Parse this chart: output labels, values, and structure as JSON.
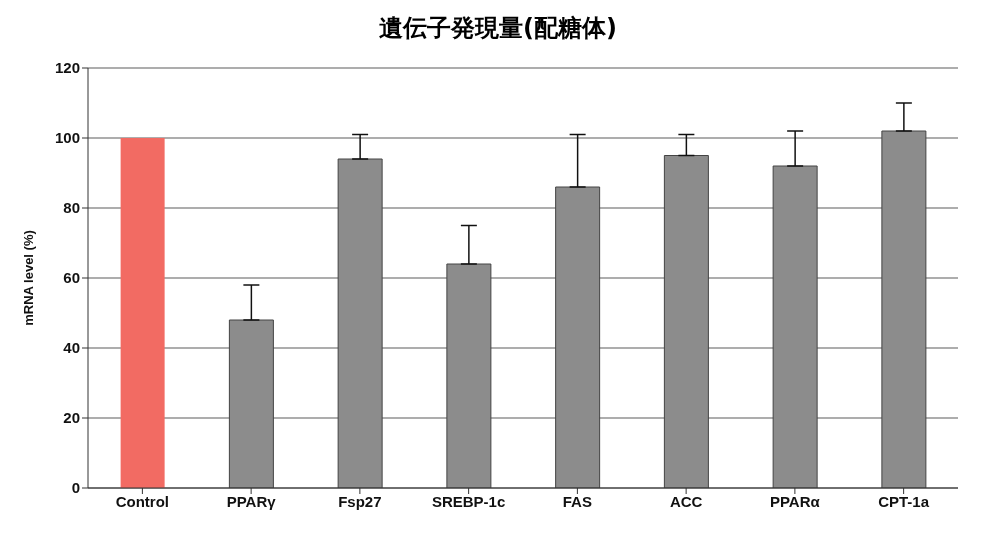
{
  "chart_data": {
    "type": "bar",
    "title": "遺伝子発現量(配糖体)",
    "ylabel": "mRNA level (%)",
    "categories": [
      "Control",
      "PPARγ",
      "Fsp27",
      "SREBP-1c",
      "FAS",
      "ACC",
      "PPARα",
      "CPT-1a"
    ],
    "values": [
      100,
      48,
      94,
      64,
      86,
      95,
      92,
      102
    ],
    "colors": [
      "#f26b63",
      "#8c8c8c",
      "#8c8c8c",
      "#8c8c8c",
      "#8c8c8c",
      "#8c8c8c",
      "#8c8c8c",
      "#8c8c8c"
    ],
    "errors": [
      null,
      [
        48,
        58
      ],
      [
        94,
        101
      ],
      [
        64,
        75
      ],
      [
        86,
        101
      ],
      [
        95,
        101
      ],
      [
        92,
        102
      ],
      [
        102,
        110
      ]
    ],
    "ylim": [
      0,
      120
    ],
    "yticks": [
      0,
      20,
      40,
      60,
      80,
      100,
      120
    ],
    "grid": "y"
  }
}
